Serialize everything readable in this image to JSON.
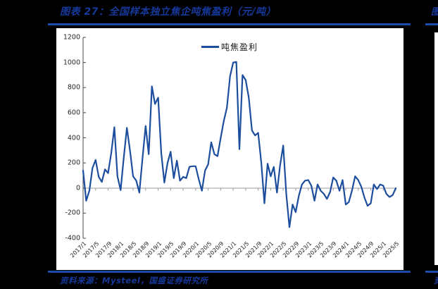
{
  "page": {
    "background_color": "#000000",
    "accent_blue": "#1d4ca8",
    "title": "图表 27：全国样本独立焦企吨焦盈利（元/吨）",
    "source": "资料来源：Mysteel，国盛证券研究所",
    "adjacent_chart": {
      "title_fragment": "图",
      "source_fragment": "资"
    }
  },
  "chart": {
    "legend_label": "吨焦盈利",
    "line_color": "#1d4e9e",
    "zero_axis_color": "#9a9a9a",
    "y_axis_color": "#4a4a4a",
    "plot_background": "#ffffff",
    "y_ticks": [
      "1200",
      "1000",
      "800",
      "600",
      "400",
      "200",
      "0",
      "-200",
      "-400"
    ]
  },
  "chart_data": {
    "type": "line",
    "title": "全国样本独立焦企吨焦盈利（元/吨）",
    "series_name": "吨焦盈利",
    "xlabel": "",
    "ylabel": "",
    "ylim": [
      -400,
      1200
    ],
    "y_tick_step": 200,
    "grid": "zero-line-only",
    "legend_position": "top-center",
    "x_tick_every_n_months": 4,
    "months": [
      "2017/1",
      "2017/2",
      "2017/3",
      "2017/4",
      "2017/5",
      "2017/6",
      "2017/7",
      "2017/8",
      "2017/9",
      "2017/10",
      "2017/11",
      "2017/12",
      "2018/1",
      "2018/2",
      "2018/3",
      "2018/4",
      "2018/5",
      "2018/6",
      "2018/7",
      "2018/8",
      "2018/9",
      "2018/10",
      "2018/11",
      "2018/12",
      "2019/1",
      "2019/2",
      "2019/3",
      "2019/4",
      "2019/5",
      "2019/6",
      "2019/7",
      "2019/8",
      "2019/9",
      "2019/10",
      "2019/11",
      "2019/12",
      "2020/1",
      "2020/2",
      "2020/3",
      "2020/4",
      "2020/5",
      "2020/6",
      "2020/7",
      "2020/8",
      "2020/9",
      "2020/10",
      "2020/11",
      "2020/12",
      "2021/1",
      "2021/2",
      "2021/3",
      "2021/4",
      "2021/5",
      "2021/6",
      "2021/7",
      "2021/8",
      "2021/9",
      "2021/10",
      "2021/11",
      "2021/12",
      "2022/1",
      "2022/2",
      "2022/3",
      "2022/4",
      "2022/5",
      "2022/6",
      "2022/7",
      "2022/8",
      "2022/9",
      "2022/10",
      "2022/11",
      "2022/12",
      "2023/1",
      "2023/2",
      "2023/3",
      "2023/4",
      "2023/5",
      "2023/6",
      "2023/7",
      "2023/8",
      "2023/9",
      "2023/10",
      "2023/11",
      "2023/12",
      "2024/1",
      "2024/2",
      "2024/3",
      "2024/4",
      "2024/5",
      "2024/6",
      "2024/7",
      "2024/8",
      "2024/9",
      "2024/10",
      "2024/11",
      "2024/12",
      "2025/1",
      "2025/2",
      "2025/3",
      "2025/4",
      "2025/5"
    ],
    "values": [
      140,
      -100,
      -20,
      160,
      225,
      90,
      50,
      150,
      120,
      280,
      485,
      95,
      -15,
      240,
      480,
      300,
      95,
      60,
      -35,
      240,
      495,
      270,
      810,
      670,
      720,
      280,
      45,
      200,
      290,
      80,
      220,
      60,
      90,
      80,
      170,
      175,
      175,
      70,
      -20,
      140,
      190,
      365,
      270,
      255,
      400,
      535,
      640,
      890,
      1000,
      1005,
      310,
      900,
      860,
      720,
      460,
      420,
      440,
      200,
      -120,
      195,
      95,
      170,
      -35,
      180,
      340,
      -50,
      -310,
      -130,
      -190,
      -60,
      30,
      60,
      65,
      20,
      -100,
      30,
      -20,
      -45,
      -85,
      -30,
      85,
      60,
      -20,
      65,
      -130,
      -110,
      -20,
      95,
      65,
      10,
      -75,
      -140,
      -120,
      30,
      -7,
      30,
      20,
      -45,
      -70,
      -55,
      0
    ]
  }
}
